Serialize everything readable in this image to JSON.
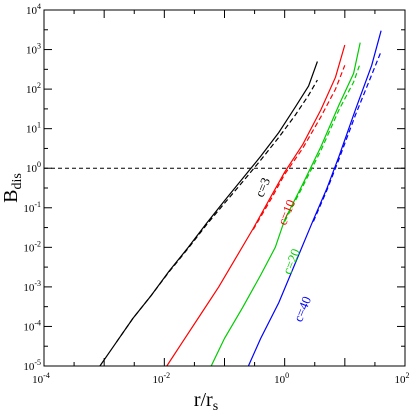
{
  "chart_data": {
    "type": "line",
    "xlabel_main": "r/r",
    "xlabel_sub": "s",
    "ylabel_main": "B",
    "ylabel_sub": "dis",
    "x_scale": "log",
    "y_scale": "log",
    "xlim": [
      0.0001,
      100
    ],
    "ylim": [
      1e-05,
      10000
    ],
    "x_ticks": [
      {
        "value": 0.0001,
        "base": "10",
        "exp": "-4"
      },
      {
        "value": 0.01,
        "base": "10",
        "exp": "-2"
      },
      {
        "value": 1,
        "base": "10",
        "exp": "0"
      },
      {
        "value": 100,
        "base": "10",
        "exp": "2"
      }
    ],
    "y_ticks": [
      {
        "value": 1e-05,
        "base": "10",
        "exp": "-5"
      },
      {
        "value": 0.0001,
        "base": "10",
        "exp": "-4"
      },
      {
        "value": 0.001,
        "base": "10",
        "exp": "-3"
      },
      {
        "value": 0.01,
        "base": "10",
        "exp": "-2"
      },
      {
        "value": 0.1,
        "base": "10",
        "exp": "-1"
      },
      {
        "value": 1,
        "base": "10",
        "exp": "0"
      },
      {
        "value": 10,
        "base": "10",
        "exp": "1"
      },
      {
        "value": 100,
        "base": "10",
        "exp": "2"
      },
      {
        "value": 1000,
        "base": "10",
        "exp": "3"
      },
      {
        "value": 10000,
        "base": "10",
        "exp": "4"
      }
    ],
    "reference_line": {
      "y": 1,
      "style": "dashed",
      "color": "#000000"
    },
    "series": [
      {
        "name": "c=3",
        "color": "#000000",
        "style": "solid",
        "points": [
          [
            0.00085,
            1e-05
          ],
          [
            0.0016,
            4e-05
          ],
          [
            0.003,
            0.00016
          ],
          [
            0.006,
            0.0006
          ],
          [
            0.012,
            0.0025
          ],
          [
            0.025,
            0.01
          ],
          [
            0.05,
            0.04
          ],
          [
            0.1,
            0.15
          ],
          [
            0.2,
            0.55
          ],
          [
            0.4,
            2
          ],
          [
            0.8,
            8
          ],
          [
            1.5,
            35
          ],
          [
            2.5,
            120
          ],
          [
            3.5,
            500
          ]
        ]
      },
      {
        "name": "c=3",
        "color": "#000000",
        "style": "dashed",
        "points": [
          [
            0.0016,
            4e-05
          ],
          [
            0.003,
            0.00016
          ],
          [
            0.006,
            0.0006
          ],
          [
            0.012,
            0.0024
          ],
          [
            0.025,
            0.0095
          ],
          [
            0.05,
            0.037
          ],
          [
            0.1,
            0.13
          ],
          [
            0.2,
            0.45
          ],
          [
            0.4,
            1.6
          ],
          [
            0.8,
            6
          ],
          [
            1.5,
            22
          ],
          [
            2.5,
            70
          ],
          [
            3.5,
            170
          ]
        ]
      },
      {
        "name": "c=10",
        "color": "#ff0000",
        "style": "solid",
        "points": [
          [
            0.011,
            1e-05
          ],
          [
            0.02,
            4e-05
          ],
          [
            0.04,
            0.0002
          ],
          [
            0.08,
            0.001
          ],
          [
            0.15,
            0.005
          ],
          [
            0.3,
            0.03
          ],
          [
            0.6,
            0.2
          ],
          [
            1.0,
            0.8
          ],
          [
            2.0,
            4
          ],
          [
            4.0,
            30
          ],
          [
            7.0,
            200
          ],
          [
            10.0,
            1300
          ]
        ]
      },
      {
        "name": "c=10",
        "color": "#ff0000",
        "style": "dashed",
        "points": [
          [
            0.3,
            0.028
          ],
          [
            0.6,
            0.17
          ],
          [
            1.0,
            0.7
          ],
          [
            2.0,
            3.2
          ],
          [
            4.0,
            20
          ],
          [
            7.0,
            100
          ],
          [
            10.0,
            400
          ]
        ]
      },
      {
        "name": "c=20",
        "color": "#00cc00",
        "style": "solid",
        "points": [
          [
            0.06,
            1e-05
          ],
          [
            0.1,
            5e-05
          ],
          [
            0.2,
            0.0003
          ],
          [
            0.4,
            0.002
          ],
          [
            0.7,
            0.01
          ],
          [
            1.0,
            0.05
          ],
          [
            2.0,
            0.4
          ],
          [
            4.0,
            3.5
          ],
          [
            8.0,
            40
          ],
          [
            14.0,
            250
          ],
          [
            18.0,
            1500
          ]
        ]
      },
      {
        "name": "c=20",
        "color": "#00cc00",
        "style": "dashed",
        "points": [
          [
            1.0,
            0.045
          ],
          [
            2.0,
            0.35
          ],
          [
            4.0,
            2.8
          ],
          [
            8.0,
            30
          ],
          [
            14.0,
            150
          ],
          [
            18.0,
            450
          ]
        ]
      },
      {
        "name": "c=40",
        "color": "#0000ff",
        "style": "solid",
        "points": [
          [
            0.25,
            1e-05
          ],
          [
            0.4,
            5e-05
          ],
          [
            0.8,
            0.0004
          ],
          [
            1.5,
            0.004
          ],
          [
            3.0,
            0.05
          ],
          [
            5.0,
            0.3
          ],
          [
            8.0,
            2
          ],
          [
            15.0,
            30
          ],
          [
            28.0,
            400
          ],
          [
            40.0,
            3000
          ]
        ]
      },
      {
        "name": "c=40",
        "color": "#0000ff",
        "style": "dashed",
        "points": [
          [
            3.0,
            0.045
          ],
          [
            5.0,
            0.27
          ],
          [
            8.0,
            1.7
          ],
          [
            15.0,
            22
          ],
          [
            28.0,
            230
          ],
          [
            40.0,
            900
          ]
        ]
      }
    ],
    "curve_labels": [
      {
        "text": "c=3",
        "color": "#000000",
        "x": 0.5,
        "y": 0.3
      },
      {
        "text": "c=10",
        "color": "#ff0000",
        "x": 1.25,
        "y": 0.07
      },
      {
        "text": "c=20",
        "color": "#00cc00",
        "x": 1.5,
        "y": 0.004
      },
      {
        "text": "c=40",
        "color": "#0000ff",
        "x": 2.3,
        "y": 0.00025
      }
    ]
  }
}
